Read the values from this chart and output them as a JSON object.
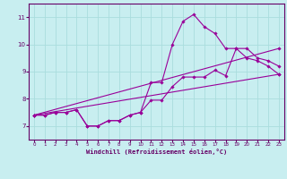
{
  "xlabel": "Windchill (Refroidissement éolien,°C)",
  "bg_color": "#c8eef0",
  "line_color": "#990099",
  "grid_color": "#aadddd",
  "axis_color": "#660066",
  "xlim": [
    -0.5,
    23.5
  ],
  "ylim": [
    6.5,
    11.5
  ],
  "xticks": [
    0,
    1,
    2,
    3,
    4,
    5,
    6,
    7,
    8,
    9,
    10,
    11,
    12,
    13,
    14,
    15,
    16,
    17,
    18,
    19,
    20,
    21,
    22,
    23
  ],
  "yticks": [
    7,
    8,
    9,
    10,
    11
  ],
  "hours": [
    0,
    1,
    2,
    3,
    4,
    5,
    6,
    7,
    8,
    9,
    10,
    11,
    12,
    13,
    14,
    15,
    16,
    17,
    18,
    19,
    20,
    21,
    22,
    23
  ],
  "line1": [
    7.4,
    7.4,
    7.5,
    7.5,
    7.6,
    7.0,
    7.0,
    7.2,
    7.2,
    7.4,
    7.5,
    8.6,
    8.6,
    10.0,
    10.85,
    11.1,
    10.65,
    10.4,
    9.85,
    9.85,
    9.5,
    9.4,
    9.2,
    8.9
  ],
  "line2": [
    7.4,
    7.4,
    7.5,
    7.5,
    7.6,
    7.0,
    7.0,
    7.2,
    7.2,
    7.4,
    7.5,
    7.95,
    7.95,
    8.45,
    8.8,
    8.8,
    8.8,
    9.05,
    8.85,
    9.85,
    9.85,
    9.5,
    9.4,
    9.2
  ],
  "line3_x": [
    0,
    23
  ],
  "line3_y": [
    7.4,
    9.85
  ],
  "line4_x": [
    0,
    23
  ],
  "line4_y": [
    7.4,
    8.9
  ]
}
